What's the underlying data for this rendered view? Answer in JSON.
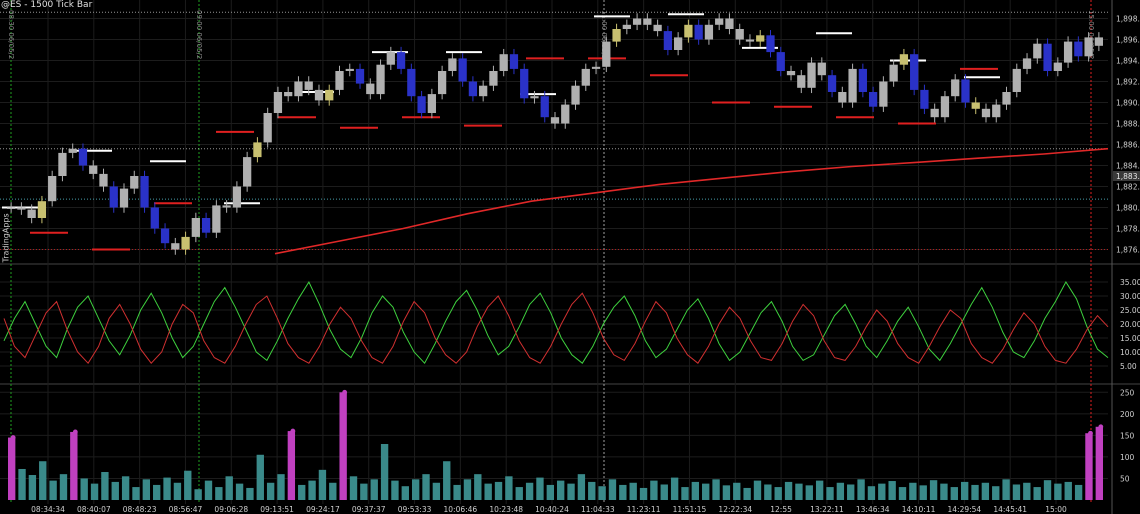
{
  "window": {
    "title": "@ES - 1500 Tick Bar",
    "brand": "TradingApps"
  },
  "colors": {
    "background": "#000000",
    "grid": "#1c1c1c",
    "price_up": "#b0b0b0",
    "price_down": "#2a32c8",
    "price_highlight": "#c8c070",
    "support": "#e02020",
    "resistance": "#ffffff",
    "vwap": "#e02828",
    "cyan_ref": "#5fd0e0",
    "osc_green": "#3ed03e",
    "osc_red": "#d03030",
    "volume": "#3a8a8a",
    "volume_spike": "#c040c0",
    "session_marker": "#20a020",
    "day_marker": "#a0a0a0"
  },
  "price_axis": {
    "labels": [
      "1,898.00",
      "1,896.00",
      "1,894.00",
      "1,892.00",
      "1,890.00",
      "1,888.00",
      "1,886.00",
      "1,884.00",
      "1,882.00",
      "1,880.00",
      "1,878.00",
      "1,876.00"
    ],
    "current_price": "1,883.00"
  },
  "osc_axis": {
    "labels": [
      "35.00",
      "30.00",
      "25.00",
      "20.00",
      "15.00",
      "10.00",
      "5.00"
    ]
  },
  "volume_axis": {
    "labels": [
      "250",
      "200",
      "150",
      "100",
      "50"
    ]
  },
  "time_axis": {
    "labels": [
      "08:34:34",
      "08:40:07",
      "08:48:23",
      "08:56:47",
      "09:06:28",
      "09:13:51",
      "09:24:17",
      "09:37:37",
      "09:53:33",
      "10:06:46",
      "10:23:48",
      "10:40:24",
      "11:04:33",
      "11:23:11",
      "11:51:15",
      "12:22:34",
      "12:55",
      "13:22:11",
      "13:46:34",
      "14:10:11",
      "14:29:54",
      "14:45:41",
      "15:00"
    ]
  },
  "vertical_markers": [
    {
      "label": "08:30 06/05/2"
    },
    {
      "label": "09:00 06/05/2"
    },
    {
      "label": "11:00 06/05/2"
    },
    {
      "label": "15:00 06/05/2"
    }
  ],
  "chart_data": [
    {
      "type": "line",
      "title": "@ES - 1500 Tick Bar",
      "series": [
        {
          "name": "",
          "values": [
            1880.0,
            1879.8,
            1879.0,
            1880.6,
            1883.0,
            1885.2,
            1885.6,
            1884.0,
            1883.2,
            1882.0,
            1880.0,
            1881.8,
            1883.0,
            1880.0,
            1878.0,
            1876.6,
            1876.0,
            1877.2,
            1879.0,
            1877.6,
            1880.2,
            1880.0,
            1882.0,
            1884.8,
            1886.2,
            1889.0,
            1891.0,
            1890.6,
            1892.0,
            1891.2,
            1890.2,
            1891.2,
            1893.0,
            1893.2,
            1891.8,
            1890.8,
            1893.6,
            1894.8,
            1893.2,
            1890.6,
            1889.0,
            1890.8,
            1893.0,
            1894.2,
            1892.0,
            1890.6,
            1891.6,
            1893.0,
            1894.6,
            1893.2,
            1890.4,
            1890.6,
            1888.6,
            1888.0,
            1889.8,
            1891.6,
            1893.2,
            1893.4,
            1895.8,
            1897.0,
            1897.4,
            1898.0,
            1897.4,
            1896.8,
            1895.0,
            1896.2,
            1897.4,
            1896.0,
            1897.4,
            1898.0,
            1897.0,
            1896.0,
            1895.8,
            1896.4,
            1894.8,
            1893.0,
            1892.6,
            1891.4,
            1893.8,
            1892.6,
            1891.0,
            1890.0,
            1893.2,
            1891.0,
            1889.6,
            1892.0,
            1893.6,
            1894.6,
            1891.2,
            1889.4,
            1888.6,
            1890.6,
            1892.2,
            1890.0,
            1889.4,
            1888.6,
            1889.8,
            1891.0,
            1893.2,
            1894.2,
            1895.6,
            1893.0,
            1893.8,
            1895.8,
            1894.4,
            1896.2,
            1895.4
          ]
        }
      ],
      "xlabel": "",
      "ylabel": "",
      "ylim": [
        1875.0,
        1899.0
      ],
      "support_levels": [
        1877.6,
        1876.0,
        1880.4,
        1887.2,
        1888.6,
        1887.6,
        1888.6,
        1887.8,
        1894.2,
        1894.2,
        1892.6,
        1890.0,
        1889.6,
        1888.6,
        1888.0,
        1893.2
      ],
      "resistance_levels": [
        1880.0,
        1885.4,
        1884.4,
        1880.4,
        1891.0,
        1894.8,
        1894.8,
        1890.8,
        1898.2,
        1898.4,
        1895.2,
        1896.6,
        1894.0,
        1892.4
      ],
      "reference_lines": [
        1885.6,
        1880.8,
        1898.6,
        1876.0
      ],
      "vwap": [
        1875.6,
        1876.8,
        1878.0,
        1879.4,
        1880.6,
        1881.4,
        1882.2,
        1882.8,
        1883.4,
        1883.9,
        1884.3,
        1884.7,
        1885.1,
        1885.6
      ],
      "grid": true,
      "legend": "none"
    },
    {
      "type": "line",
      "series": [
        {
          "name": "",
          "values": [
            14,
            22,
            28,
            20,
            12,
            8,
            18,
            26,
            30,
            22,
            14,
            9,
            16,
            25,
            31,
            24,
            15,
            8,
            12,
            20,
            28,
            33,
            26,
            18,
            10,
            7,
            14,
            22,
            29,
            35,
            27,
            18,
            11,
            8,
            15,
            24,
            30,
            26,
            17,
            10,
            6,
            13,
            21,
            28,
            32,
            25,
            16,
            9,
            12,
            19,
            27,
            31,
            24,
            15,
            9,
            6,
            12,
            20,
            26,
            30,
            23,
            14,
            8,
            11,
            18,
            25,
            29,
            22,
            13,
            7,
            10,
            17,
            24,
            28,
            21,
            12,
            7,
            9,
            16,
            23,
            27,
            20,
            12,
            8,
            14,
            21,
            26,
            19,
            11,
            7,
            13,
            20,
            27,
            33,
            26,
            17,
            10,
            8,
            14,
            22,
            28,
            35,
            29,
            19,
            11,
            8
          ]
        },
        {
          "name": "",
          "values": [
            22,
            12,
            8,
            16,
            24,
            28,
            18,
            10,
            6,
            12,
            22,
            27,
            20,
            11,
            6,
            10,
            20,
            27,
            24,
            14,
            8,
            6,
            12,
            20,
            27,
            30,
            22,
            13,
            8,
            6,
            12,
            20,
            26,
            22,
            14,
            8,
            6,
            12,
            21,
            28,
            24,
            15,
            9,
            6,
            10,
            19,
            26,
            30,
            23,
            14,
            8,
            6,
            12,
            20,
            27,
            31,
            24,
            15,
            9,
            7,
            13,
            21,
            28,
            24,
            15,
            9,
            6,
            12,
            20,
            26,
            22,
            14,
            8,
            7,
            13,
            21,
            27,
            23,
            14,
            8,
            7,
            12,
            19,
            25,
            21,
            13,
            8,
            6,
            12,
            19,
            25,
            22,
            13,
            8,
            6,
            11,
            18,
            24,
            20,
            12,
            7,
            6,
            11,
            18,
            23,
            19
          ]
        }
      ],
      "ylim": [
        0,
        40
      ],
      "grid": true
    },
    {
      "type": "bar",
      "series": [
        {
          "name": "",
          "values": [
            145,
            72,
            58,
            90,
            45,
            60,
            158,
            50,
            38,
            65,
            42,
            55,
            30,
            48,
            35,
            52,
            40,
            68,
            25,
            45,
            30,
            55,
            38,
            28,
            105,
            40,
            60,
            160,
            35,
            45,
            70,
            40,
            250,
            55,
            38,
            48,
            130,
            45,
            32,
            48,
            60,
            40,
            90,
            35,
            48,
            60,
            38,
            42,
            55,
            30,
            40,
            52,
            35,
            45,
            38,
            60,
            42,
            32,
            48,
            35,
            40,
            28,
            45,
            36,
            52,
            30,
            42,
            38,
            48,
            34,
            40,
            28,
            45,
            36,
            30,
            42,
            38,
            34,
            45,
            30,
            40,
            36,
            48,
            32,
            38,
            44,
            30,
            40,
            34,
            46,
            38,
            30,
            42,
            35,
            40,
            32,
            48,
            36,
            40,
            30,
            46,
            38,
            42,
            35,
            155,
            170
          ]
        }
      ],
      "ylim": [
        0,
        260
      ],
      "grid": true
    }
  ]
}
